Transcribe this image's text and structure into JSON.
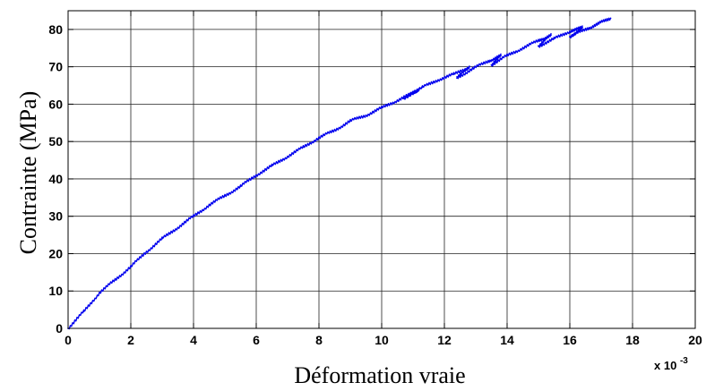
{
  "chart_data": {
    "type": "line",
    "title": "",
    "xlabel": "Déformation vraie",
    "ylabel": "Contrainte (MPa)",
    "x_multiplier_label": "x 10",
    "x_multiplier_exponent": "-3",
    "xlim": [
      0,
      20
    ],
    "ylim": [
      0,
      85
    ],
    "xticks": [
      "0",
      "2",
      "4",
      "6",
      "8",
      "10",
      "12",
      "14",
      "16",
      "18",
      "20"
    ],
    "yticks": [
      "0",
      "10",
      "20",
      "30",
      "40",
      "50",
      "60",
      "70",
      "80"
    ],
    "grid": true,
    "series": [
      {
        "color": "#0000ee",
        "x": [
          0,
          0.5,
          1,
          1.5,
          2,
          2.5,
          3,
          3.5,
          4,
          4.5,
          5,
          5.5,
          6,
          6.5,
          7,
          7.5,
          8,
          8.5,
          9,
          9.5,
          10,
          10.5,
          11,
          11.2,
          10.7,
          11.3,
          11.8,
          12.3,
          12.8,
          12.4,
          12.9,
          13.4,
          13.8,
          13.5,
          14.0,
          14.5,
          15.0,
          15.4,
          15.0,
          15.5,
          16.0,
          16.4,
          16.0,
          16.5,
          16.9,
          17.3
        ],
        "y": [
          0,
          4.5,
          9.5,
          13,
          16.5,
          20.5,
          24,
          27,
          30,
          33,
          35.5,
          38,
          41,
          43.5,
          46,
          48.5,
          51,
          53,
          55.5,
          57,
          59,
          61,
          63,
          64,
          61.5,
          64.5,
          66.5,
          68,
          70,
          67,
          69.5,
          71.5,
          73,
          70.5,
          73,
          75,
          77,
          78.5,
          75.5,
          77.5,
          79.5,
          80.5,
          78,
          80,
          81.5,
          83
        ]
      }
    ]
  }
}
